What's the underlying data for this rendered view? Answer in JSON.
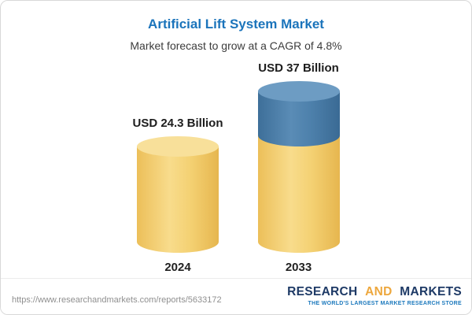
{
  "chart_data": {
    "type": "bar",
    "style": "3d-cylinder",
    "title": "Artificial Lift System Market",
    "subtitle": "Market forecast to grow at a CAGR of 4.8%",
    "categories": [
      "2024",
      "2033"
    ],
    "values": [
      24.3,
      37
    ],
    "unit": "USD Billion",
    "value_labels": [
      "USD 24.3 Billion",
      "USD 37 Billion"
    ],
    "ylim": [
      0,
      37
    ],
    "legend": "none",
    "grid": "off",
    "segments_2033": [
      {
        "name": "base equal to 2024 level",
        "value": 24.3,
        "color": "#f2cd71"
      },
      {
        "name": "growth 2024 to 2033",
        "value": 12.7,
        "color": "#4d80ab"
      }
    ],
    "colors": {
      "gold": "#f2cd71",
      "blue": "#4d80ab",
      "title_blue": "#1b74bb"
    }
  },
  "footer": {
    "url": "https://www.researchandmarkets.com/reports/5633172",
    "logo": {
      "research": "RESEARCH",
      "and": "AND",
      "markets": "MARKETS",
      "tagline": "THE WORLD'S LARGEST MARKET RESEARCH STORE"
    }
  }
}
